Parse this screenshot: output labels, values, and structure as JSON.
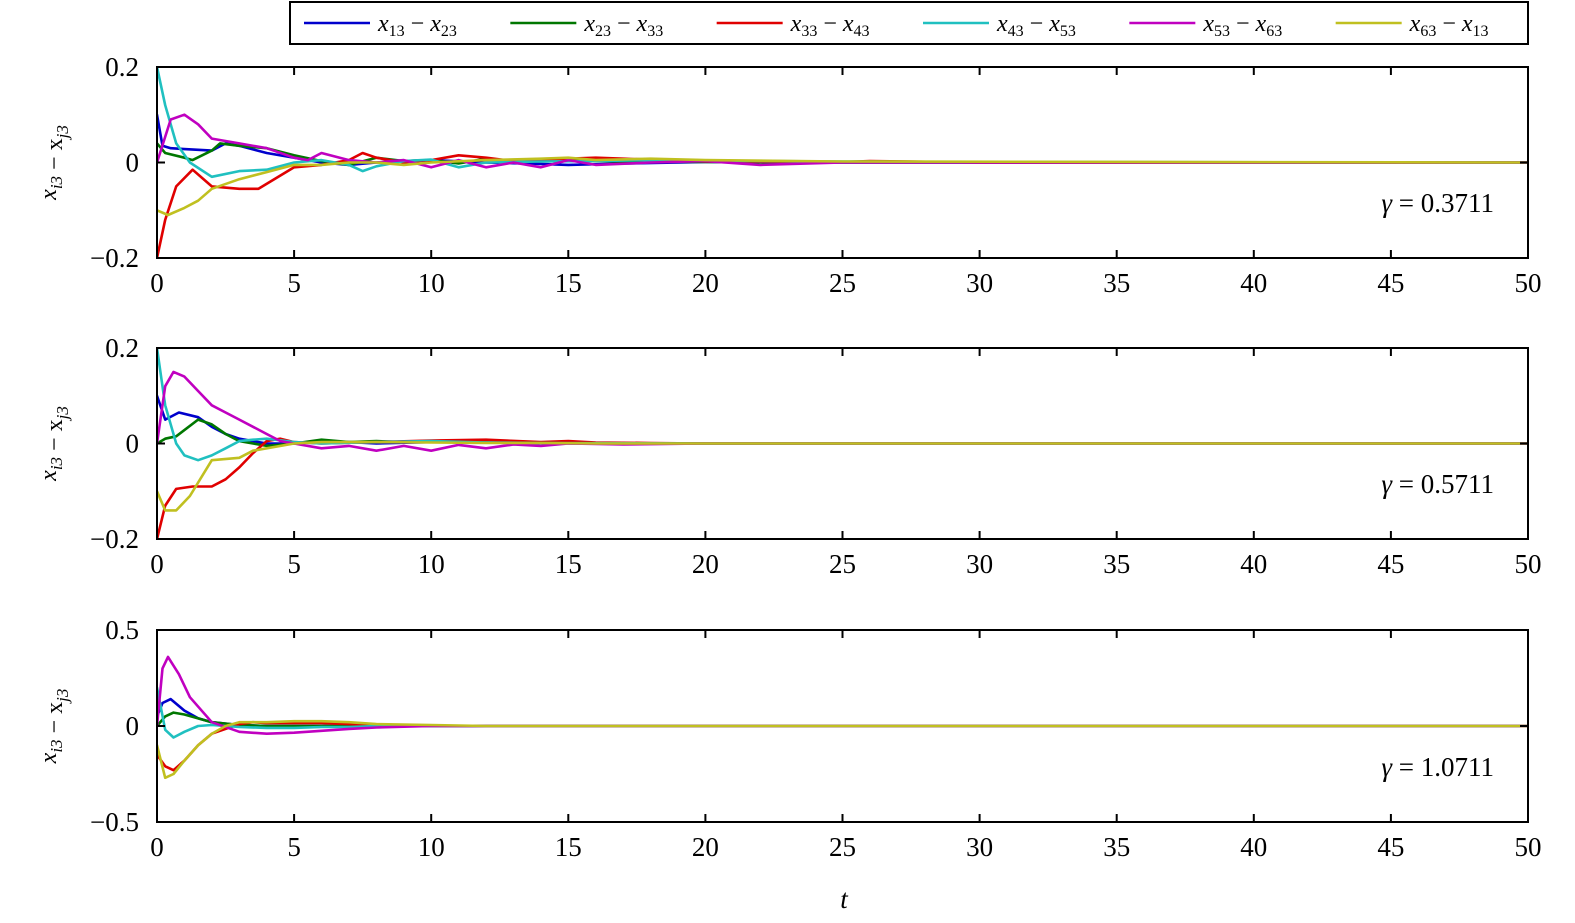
{
  "chart_data": [
    {
      "type": "line",
      "ylabel": "x_{i3} − x_{j3}",
      "annotation": "γ = 0.3711",
      "xlim": [
        0,
        50
      ],
      "ylim": [
        -0.2,
        0.2
      ],
      "xticks": [
        "0",
        "5",
        "10",
        "15",
        "20",
        "25",
        "30",
        "35",
        "40",
        "45",
        "50"
      ],
      "yticks": [
        "−0.2",
        "0",
        "0.2"
      ],
      "grid": false,
      "series": [
        {
          "name": "x13 − x23",
          "color": "#0000CC",
          "x": [
            0,
            0.2,
            0.5,
            1,
            2,
            2.5,
            3,
            4,
            5,
            6,
            7,
            8,
            9,
            10,
            12,
            14,
            15,
            17,
            20,
            25,
            30,
            50
          ],
          "y": [
            0.1,
            0.035,
            0.03,
            0.028,
            0.025,
            0.04,
            0.035,
            0.02,
            0.01,
            0.0,
            -0.005,
            0.0,
            0.003,
            0.005,
            0.0,
            -0.003,
            -0.005,
            -0.002,
            0.001,
            0,
            0,
            0
          ]
        },
        {
          "name": "x23 − x33",
          "color": "#007700",
          "x": [
            0,
            0.3,
            1,
            1.3,
            2,
            2.3,
            3,
            4,
            5,
            6,
            7,
            8,
            9,
            10,
            11,
            12,
            13,
            15,
            17,
            20,
            25,
            50
          ],
          "y": [
            0.04,
            0.02,
            0.01,
            0.005,
            0.025,
            0.04,
            0.035,
            0.03,
            0.015,
            0.003,
            -0.005,
            0.01,
            0.003,
            0.005,
            -0.002,
            0.008,
            0.003,
            0.004,
            0.002,
            0.001,
            0,
            0
          ]
        },
        {
          "name": "x33 − x43",
          "color": "#E00000",
          "x": [
            0,
            0.3,
            0.7,
            1.3,
            2,
            3,
            3.7,
            5,
            6,
            7,
            7.5,
            8,
            9,
            10,
            11,
            12,
            13,
            15,
            16,
            17,
            20,
            25,
            26,
            30,
            50
          ],
          "y": [
            -0.2,
            -0.12,
            -0.05,
            -0.015,
            -0.05,
            -0.055,
            -0.055,
            -0.01,
            -0.005,
            0.005,
            0.02,
            0.01,
            0.0,
            0.005,
            0.015,
            0.01,
            0.003,
            0.008,
            0.01,
            0.008,
            0.002,
            0.001,
            0.003,
            0.0,
            0
          ]
        },
        {
          "name": "x43 − x53",
          "color": "#20C0C0",
          "x": [
            0,
            0.3,
            0.7,
            1.2,
            2,
            3,
            4,
            5,
            6,
            7,
            7.5,
            8,
            9,
            10,
            11,
            12,
            14,
            16,
            18,
            20,
            22,
            25,
            30,
            50
          ],
          "y": [
            0.2,
            0.12,
            0.04,
            0.0,
            -0.03,
            -0.018,
            -0.015,
            0.0,
            0.005,
            -0.005,
            -0.018,
            -0.008,
            0.003,
            0.006,
            -0.01,
            0.0,
            0.002,
            0.003,
            0.005,
            0.004,
            0.003,
            0.002,
            0.001,
            0
          ]
        },
        {
          "name": "x53 − x63",
          "color": "#C000C0",
          "x": [
            0,
            0.5,
            1,
            1.5,
            2,
            3,
            4,
            5,
            5.5,
            6,
            7,
            8,
            9,
            10,
            11,
            12,
            13,
            14,
            15,
            16,
            18,
            20,
            22,
            25,
            30,
            50
          ],
          "y": [
            0.0,
            0.09,
            0.1,
            0.08,
            0.05,
            0.04,
            0.03,
            0.01,
            0.005,
            0.02,
            0.005,
            0.0,
            0.005,
            -0.01,
            0.005,
            -0.01,
            0.0,
            -0.01,
            0.005,
            -0.005,
            0.0,
            0.003,
            -0.005,
            0.0,
            0.0,
            0
          ]
        },
        {
          "name": "x63 − x13",
          "color": "#C0C020",
          "x": [
            0,
            0.4,
            1,
            1.5,
            2,
            3,
            4,
            5,
            6,
            7,
            8,
            9,
            10,
            12,
            14,
            15,
            16,
            18,
            20,
            25,
            50
          ],
          "y": [
            -0.1,
            -0.11,
            -0.095,
            -0.08,
            -0.055,
            -0.035,
            -0.02,
            -0.005,
            -0.005,
            0.0,
            0.0,
            -0.005,
            0.0,
            0.005,
            0.008,
            0.01,
            0.005,
            0.008,
            0.005,
            0.002,
            0
          ]
        }
      ]
    },
    {
      "type": "line",
      "ylabel": "x_{i3} − x_{j3}",
      "annotation": "γ = 0.5711",
      "xlim": [
        0,
        50
      ],
      "ylim": [
        -0.2,
        0.2
      ],
      "xticks": [
        "0",
        "5",
        "10",
        "15",
        "20",
        "25",
        "30",
        "35",
        "40",
        "45",
        "50"
      ],
      "yticks": [
        "−0.2",
        "0",
        "0.2"
      ],
      "grid": false,
      "series": [
        {
          "name": "x13 − x23",
          "color": "#0000CC",
          "x": [
            0,
            0.3,
            0.8,
            1.5,
            2,
            2.5,
            3,
            3.5,
            4,
            5,
            6,
            7,
            8,
            10,
            12,
            14,
            15,
            20,
            50
          ],
          "y": [
            0.1,
            0.05,
            0.065,
            0.055,
            0.035,
            0.02,
            0.01,
            0.005,
            0.0,
            0.0,
            0.005,
            0.003,
            0.0,
            0.003,
            0.002,
            0.001,
            0.0,
            0.0,
            0
          ]
        },
        {
          "name": "x23 − x33",
          "color": "#007700",
          "x": [
            0,
            0.3,
            0.7,
            1.5,
            2,
            2.5,
            3,
            4,
            5,
            6,
            7,
            8,
            9,
            10,
            12,
            14,
            16,
            20,
            50
          ],
          "y": [
            0.0,
            0.01,
            0.015,
            0.05,
            0.04,
            0.02,
            0.005,
            -0.005,
            0.0,
            0.008,
            0.003,
            0.005,
            0.003,
            0.005,
            0.002,
            0.001,
            0.0,
            0.0,
            0
          ]
        },
        {
          "name": "x33 − x43",
          "color": "#E00000",
          "x": [
            0,
            0.3,
            0.7,
            1.3,
            2,
            2.5,
            3,
            3.5,
            4,
            4.5,
            5,
            6,
            8,
            10,
            12,
            14,
            15,
            16,
            18,
            20,
            50
          ],
          "y": [
            -0.2,
            -0.13,
            -0.095,
            -0.09,
            -0.09,
            -0.075,
            -0.05,
            -0.02,
            0.005,
            0.01,
            0.003,
            0.0,
            0.003,
            0.006,
            0.008,
            0.003,
            0.005,
            0.002,
            0.001,
            0.0,
            0
          ]
        },
        {
          "name": "x43 − x53",
          "color": "#20C0C0",
          "x": [
            0,
            0.3,
            0.7,
            1,
            1.5,
            2,
            2.5,
            3,
            3.5,
            4,
            5,
            6,
            8,
            10,
            12,
            14,
            20,
            50
          ],
          "y": [
            0.2,
            0.08,
            0.0,
            -0.025,
            -0.035,
            -0.025,
            -0.01,
            0.005,
            0.008,
            0.01,
            0.003,
            0.0,
            0.003,
            0.005,
            0.002,
            0.001,
            0.0,
            0
          ]
        },
        {
          "name": "x53 − x63",
          "color": "#C000C0",
          "x": [
            0,
            0.3,
            0.6,
            1,
            1.5,
            2,
            2.5,
            3,
            4,
            4.5,
            5,
            6,
            7,
            8,
            9,
            10,
            11,
            12,
            13,
            14,
            15,
            17,
            20,
            50
          ],
          "y": [
            0.0,
            0.12,
            0.15,
            0.14,
            0.11,
            0.08,
            0.065,
            0.05,
            0.02,
            0.005,
            0.0,
            -0.01,
            -0.005,
            -0.015,
            -0.005,
            -0.015,
            -0.003,
            -0.01,
            -0.002,
            -0.005,
            0.0,
            -0.002,
            0.0,
            0
          ]
        },
        {
          "name": "x63 − x13",
          "color": "#C0C020",
          "x": [
            0,
            0.3,
            0.7,
            1.2,
            2,
            3,
            3.5,
            4,
            5,
            6,
            8,
            10,
            12,
            14,
            16,
            20,
            50
          ],
          "y": [
            -0.1,
            -0.14,
            -0.14,
            -0.11,
            -0.035,
            -0.03,
            -0.015,
            -0.01,
            0.0,
            0.003,
            0.003,
            0.002,
            0.001,
            0.001,
            0.0,
            0.0,
            0
          ]
        }
      ]
    },
    {
      "type": "line",
      "ylabel": "x_{i3} − x_{j3}",
      "annotation": "γ = 1.0711",
      "xlim": [
        0,
        50
      ],
      "ylim": [
        -0.5,
        0.5
      ],
      "xticks": [
        "0",
        "5",
        "10",
        "15",
        "20",
        "25",
        "30",
        "35",
        "40",
        "45",
        "50"
      ],
      "yticks": [
        "−0.5",
        "0",
        "0.5"
      ],
      "grid": false,
      "series": [
        {
          "name": "x13 − x23",
          "color": "#0000CC",
          "x": [
            0,
            0.2,
            0.5,
            1,
            1.5,
            2,
            3,
            4,
            5,
            6,
            8,
            10,
            50
          ],
          "y": [
            0.05,
            0.12,
            0.14,
            0.08,
            0.04,
            0.02,
            0.005,
            0.0,
            0.0,
            0.0,
            0.0,
            0.0,
            0
          ]
        },
        {
          "name": "x23 − x33",
          "color": "#007700",
          "x": [
            0,
            0.3,
            0.6,
            1,
            2,
            3,
            4,
            5,
            6,
            8,
            10,
            50
          ],
          "y": [
            0.0,
            0.05,
            0.07,
            0.06,
            0.02,
            0.005,
            0.0,
            0.0,
            0.0,
            0.0,
            0.0,
            0
          ]
        },
        {
          "name": "x33 − x43",
          "color": "#E00000",
          "x": [
            0,
            0.3,
            0.6,
            1,
            1.5,
            2,
            3,
            3.5,
            4,
            5,
            6,
            7,
            8,
            10,
            12,
            50
          ],
          "y": [
            -0.15,
            -0.21,
            -0.23,
            -0.18,
            -0.1,
            -0.04,
            0.01,
            0.02,
            0.015,
            0.015,
            0.015,
            0.01,
            0.005,
            0.0,
            0.0,
            0
          ]
        },
        {
          "name": "x43 − x53",
          "color": "#20C0C0",
          "x": [
            0,
            0.3,
            0.6,
            1,
            1.5,
            2,
            3,
            4,
            5,
            6,
            7,
            8,
            10,
            50
          ],
          "y": [
            0.2,
            -0.02,
            -0.06,
            -0.03,
            0.0,
            0.005,
            -0.005,
            -0.01,
            -0.01,
            -0.005,
            -0.005,
            0.0,
            0.0,
            0
          ]
        },
        {
          "name": "x53 − x63",
          "color": "#C000C0",
          "x": [
            0,
            0.2,
            0.4,
            0.8,
            1.2,
            2,
            3,
            4,
            5,
            6,
            7,
            8,
            10,
            12,
            50
          ],
          "y": [
            0.0,
            0.3,
            0.36,
            0.27,
            0.15,
            0.02,
            -0.03,
            -0.04,
            -0.035,
            -0.025,
            -0.015,
            -0.008,
            0.0,
            0.0,
            0
          ]
        },
        {
          "name": "x63 − x13",
          "color": "#C0C020",
          "x": [
            0,
            0.3,
            0.6,
            1,
            1.5,
            2,
            2.5,
            3,
            4,
            5,
            6,
            7,
            8,
            10,
            12,
            50
          ],
          "y": [
            -0.1,
            -0.27,
            -0.25,
            -0.18,
            -0.1,
            -0.04,
            0.0,
            0.02,
            0.02,
            0.025,
            0.025,
            0.02,
            0.01,
            0.005,
            0.0,
            0
          ]
        }
      ]
    }
  ],
  "xlabel": "t",
  "legend": {
    "placement": "top-right",
    "entries": [
      {
        "lhs": "x",
        "lhs_sub": "13",
        "rhs": "x",
        "rhs_sub": "23",
        "color": "#0000CC"
      },
      {
        "lhs": "x",
        "lhs_sub": "23",
        "rhs": "x",
        "rhs_sub": "33",
        "color": "#007700"
      },
      {
        "lhs": "x",
        "lhs_sub": "33",
        "rhs": "x",
        "rhs_sub": "43",
        "color": "#E00000"
      },
      {
        "lhs": "x",
        "lhs_sub": "43",
        "rhs": "x",
        "rhs_sub": "53",
        "color": "#20C0C0"
      },
      {
        "lhs": "x",
        "lhs_sub": "53",
        "rhs": "x",
        "rhs_sub": "63",
        "color": "#C000C0"
      },
      {
        "lhs": "x",
        "lhs_sub": "63",
        "rhs": "x",
        "rhs_sub": "13",
        "color": "#C0C020"
      }
    ]
  }
}
